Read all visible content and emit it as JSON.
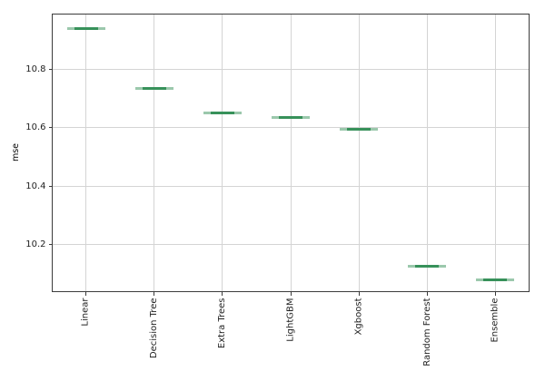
{
  "chart_data": {
    "type": "boxplot",
    "note": "each model's score distribution collapses to a single flat horizontal line (zero variance), drawn as a light green box with a darker green median segment",
    "title": "",
    "xlabel": "",
    "ylabel": "mse",
    "categories": [
      "Linear",
      "Decision Tree",
      "Extra Trees",
      "LightGBM",
      "Xgboost",
      "Random Forest",
      "Ensemble"
    ],
    "values": [
      10.94,
      10.735,
      10.65,
      10.635,
      10.595,
      10.125,
      10.08
    ],
    "ylim": [
      10.037,
      10.99
    ],
    "yticks": [
      10.2,
      10.4,
      10.6,
      10.8
    ],
    "grid": true,
    "legend": null,
    "colors": {
      "box_fill": "rgba(55,145,90,0.5)",
      "median": "#37915a",
      "grid": "#d4d4d4",
      "spine": "#3c3c3c",
      "text": "#1f1f1f"
    }
  }
}
